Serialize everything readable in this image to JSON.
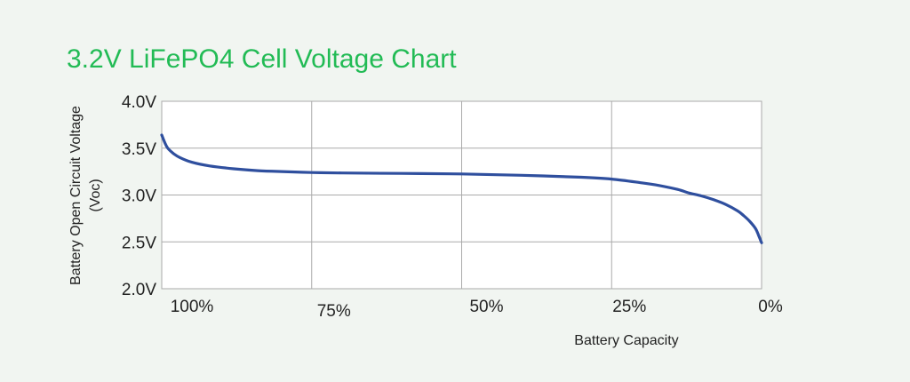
{
  "chart_data": {
    "type": "line",
    "title": "3.2V LiFePO4 Cell Voltage Chart",
    "xlabel": "Battery Capacity",
    "ylabel": "Battery Open Circuit Voltage",
    "ylabel_unit": "(Voc)",
    "x_tick_labels": [
      "100%",
      "75%",
      "50%",
      "25%",
      "0%"
    ],
    "y_tick_labels": [
      "4.0V",
      "3.5V",
      "3.0V",
      "2.5V",
      "2.0V"
    ],
    "x_ticks": [
      100,
      75,
      50,
      25,
      0
    ],
    "y_ticks": [
      4.0,
      3.5,
      3.0,
      2.5,
      2.0
    ],
    "xlim": [
      100,
      0
    ],
    "ylim": [
      2.0,
      4.0
    ],
    "grid": true,
    "series": [
      {
        "x": [
          100,
          99.5,
          99,
          98,
          97,
          95,
          92,
          88,
          84,
          80,
          75,
          70,
          60,
          50,
          40,
          30,
          25,
          20,
          17,
          14,
          12,
          10,
          8,
          6,
          4,
          3,
          2,
          1,
          0.5,
          0
        ],
        "y": [
          3.64,
          3.56,
          3.5,
          3.44,
          3.4,
          3.35,
          3.31,
          3.28,
          3.26,
          3.25,
          3.24,
          3.235,
          3.23,
          3.225,
          3.21,
          3.19,
          3.17,
          3.13,
          3.1,
          3.06,
          3.02,
          2.99,
          2.95,
          2.9,
          2.83,
          2.78,
          2.72,
          2.64,
          2.57,
          2.49
        ]
      }
    ]
  },
  "colors": {
    "title": "#22bb55",
    "line": "#2f4f9e",
    "grid": "#aaaaaa",
    "background": "#f1f5f1",
    "plot_background": "#ffffff"
  }
}
